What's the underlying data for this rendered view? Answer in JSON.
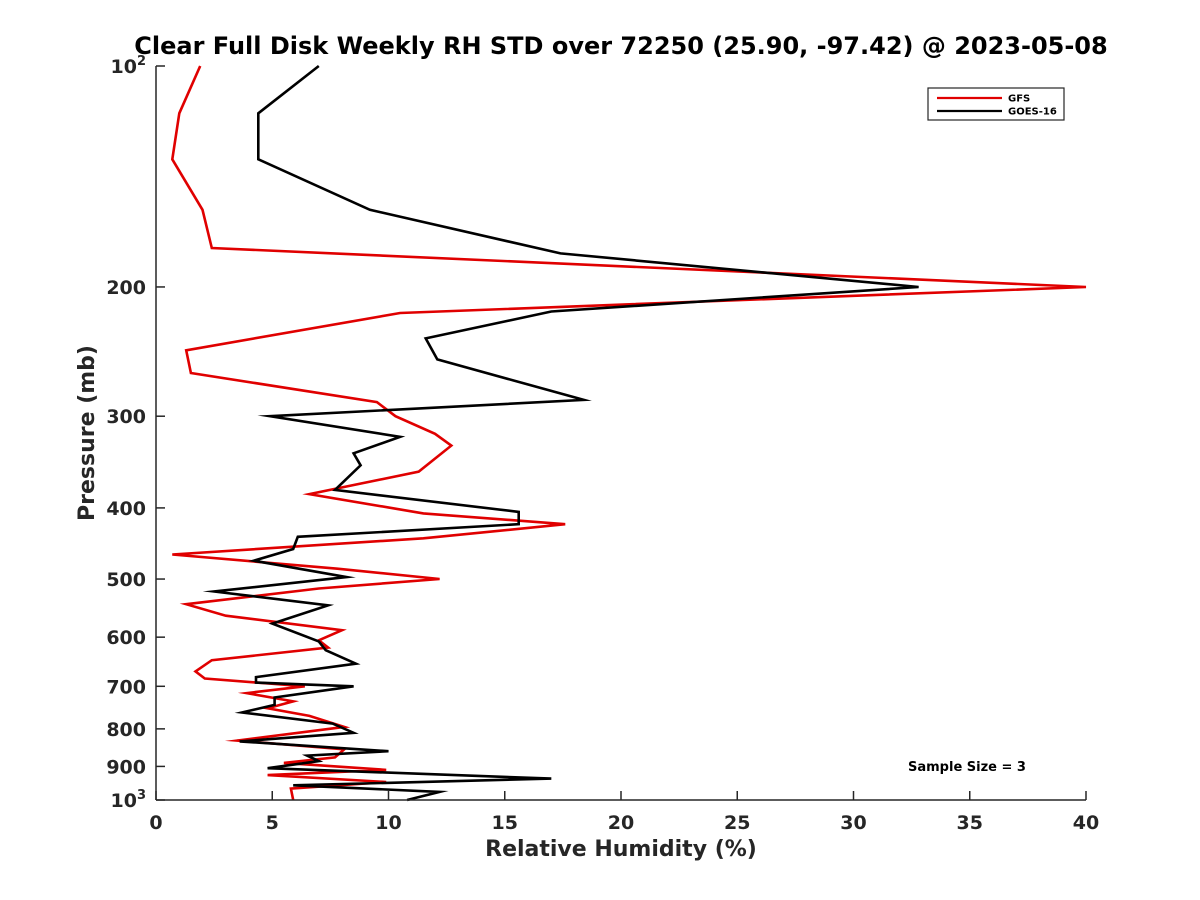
{
  "chart_data": {
    "type": "line",
    "title": "Clear Full Disk Weekly RH STD over 72250 (25.90, -97.42) @ 2023-05-08",
    "xlabel": "Relative Humidity (%)",
    "ylabel": "Pressure (mb)",
    "xlim": [
      0,
      40
    ],
    "ylim": [
      100,
      1000
    ],
    "yscale": "log",
    "y_reversed": true,
    "grid": false,
    "legend_position": "top-right",
    "x_ticks": [
      0,
      5,
      10,
      15,
      20,
      25,
      30,
      35,
      40
    ],
    "x_tick_labels": [
      "0",
      "5",
      "10",
      "15",
      "20",
      "25",
      "30",
      "35",
      "40"
    ],
    "y_ticks": [
      100,
      200,
      300,
      400,
      500,
      600,
      700,
      800,
      900,
      1000
    ],
    "y_tick_labels": [
      {
        "base": "10",
        "sup": "2"
      },
      {
        "base": "200",
        "sup": ""
      },
      {
        "base": "300",
        "sup": ""
      },
      {
        "base": "400",
        "sup": ""
      },
      {
        "base": "500",
        "sup": ""
      },
      {
        "base": "600",
        "sup": ""
      },
      {
        "base": "700",
        "sup": ""
      },
      {
        "base": "800",
        "sup": ""
      },
      {
        "base": "900",
        "sup": ""
      },
      {
        "base": "10",
        "sup": "3"
      }
    ],
    "annotation": "Sample Size = 3",
    "series": [
      {
        "name": "GFS",
        "color": "#e00000",
        "x": [
          1.9,
          1.0,
          0.7,
          2.0,
          2.4,
          40.0,
          10.5,
          1.3,
          1.5,
          9.5,
          10.3,
          12.0,
          12.7,
          11.3,
          6.6,
          11.5,
          17.6,
          11.5,
          0.7,
          7.8,
          12.2,
          7.0,
          1.3,
          3.0,
          8.0,
          7.0,
          7.4,
          2.4,
          1.7,
          2.1,
          6.4,
          3.9,
          5.9,
          4.8,
          6.6,
          8.1,
          3.5,
          8.1,
          7.7,
          5.5,
          9.9,
          4.8,
          9.9,
          5.8,
          5.9
        ],
        "y": [
          100,
          116,
          134,
          157,
          177,
          200,
          217,
          244,
          262,
          287,
          300,
          317,
          329,
          357,
          383,
          407,
          421,
          440,
          463,
          484,
          500,
          515,
          541,
          561,
          587,
          606,
          620,
          645,
          668,
          683,
          700,
          715,
          734,
          750,
          768,
          795,
          830,
          853,
          875,
          890,
          910,
          925,
          945,
          965,
          1000
        ]
      },
      {
        "name": "GOES-16",
        "color": "#000000",
        "x": [
          7.0,
          4.4,
          4.4,
          9.2,
          17.4,
          32.8,
          17.0,
          11.6,
          12.1,
          18.4,
          4.9,
          10.5,
          8.5,
          8.8,
          7.7,
          15.6,
          15.6,
          6.1,
          5.9,
          4.2,
          8.2,
          2.5,
          7.4,
          5.0,
          7.0,
          7.3,
          8.6,
          4.3,
          4.3,
          8.5,
          5.1,
          5.1,
          3.7,
          7.6,
          8.5,
          3.6,
          10.0,
          6.5,
          7.0,
          4.8,
          17.0,
          5.9,
          12.2,
          10.8
        ],
        "y": [
          100,
          116,
          134,
          157,
          180,
          200,
          216,
          235,
          251,
          285,
          300,
          320,
          337,
          350,
          378,
          405,
          421,
          438,
          455,
          472,
          497,
          520,
          543,
          575,
          608,
          625,
          652,
          680,
          692,
          700,
          725,
          742,
          760,
          787,
          810,
          832,
          858,
          870,
          885,
          905,
          935,
          955,
          975,
          1000
        ]
      }
    ]
  }
}
